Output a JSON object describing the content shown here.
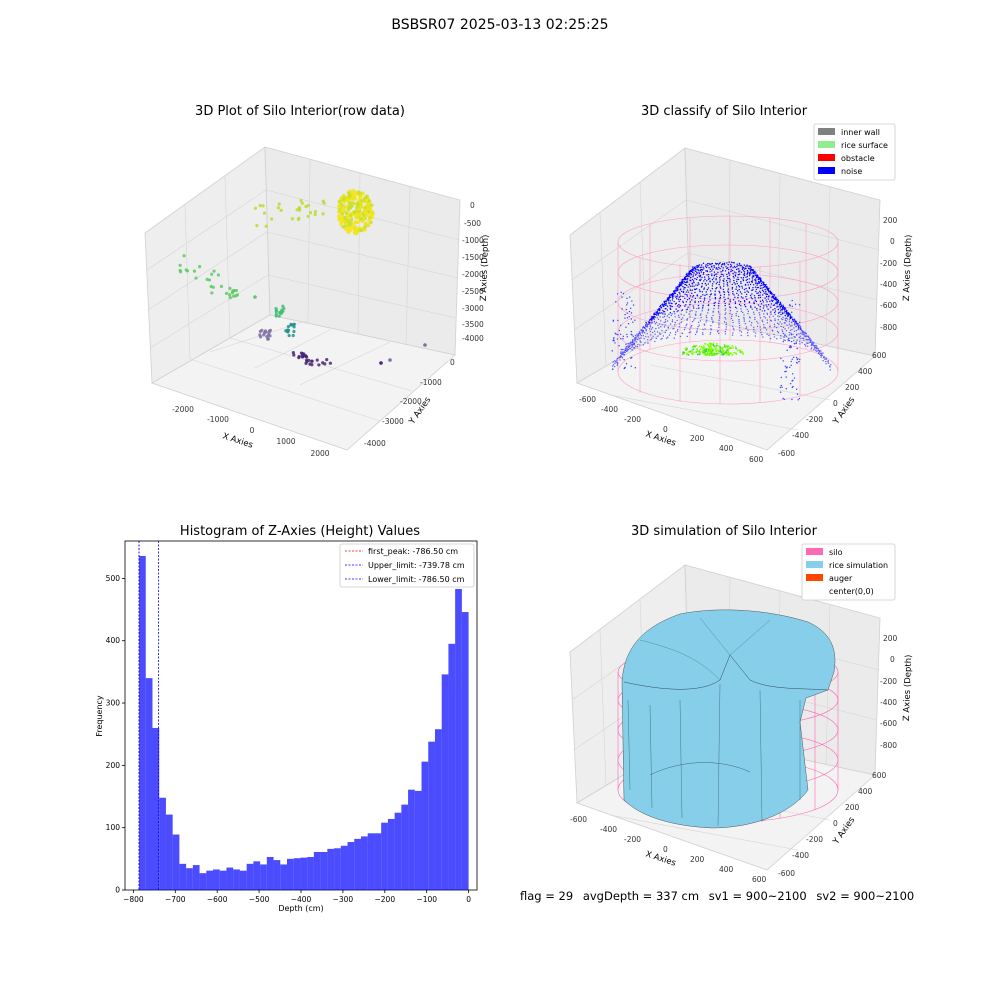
{
  "suptitle": "BSBSR07 2025-03-13 02:25:25",
  "panels": {
    "raw": {
      "title": "3D Plot of Silo Interior(row data)",
      "xlabel": "X Axies",
      "ylabel": "Y Axies",
      "zlabel": "Z Axies (Depth)",
      "x_ticks": [
        "-2000",
        "-1000",
        "0",
        "1000",
        "2000"
      ],
      "y_ticks": [
        "0",
        "-1000",
        "-2000",
        "-3000",
        "-4000"
      ],
      "z_ticks": [
        "0",
        "-500",
        "-1000",
        "-1500",
        "-2000",
        "-2500",
        "-3000",
        "-3500",
        "-4000"
      ]
    },
    "classify": {
      "title": "3D classify of Silo Interior",
      "xlabel": "X Axies",
      "ylabel": "Y Axies",
      "zlabel": "Z Axies (Depth)",
      "x_ticks": [
        "-600",
        "-400",
        "-200",
        "0",
        "200",
        "400",
        "600"
      ],
      "y_ticks": [
        "600",
        "400",
        "200",
        "0",
        "-200",
        "-400",
        "-600"
      ],
      "z_ticks": [
        "200",
        "0",
        "-200",
        "-400",
        "-600",
        "-800"
      ],
      "legend": [
        {
          "label": "inner wall",
          "color": "#808080"
        },
        {
          "label": "rice surface",
          "color": "#90ee90"
        },
        {
          "label": "obstacle",
          "color": "#ff0000"
        },
        {
          "label": "noise",
          "color": "#0000ff"
        }
      ]
    },
    "simulation": {
      "title": "3D simulation of Silo Interior",
      "xlabel": "X Axies",
      "ylabel": "Y Axies",
      "zlabel": "Z Axies (Depth)",
      "x_ticks": [
        "-600",
        "-400",
        "-200",
        "0",
        "200",
        "400",
        "600"
      ],
      "y_ticks": [
        "600",
        "400",
        "200",
        "0",
        "-200",
        "-400",
        "-600"
      ],
      "z_ticks": [
        "200",
        "0",
        "-200",
        "-400",
        "-600",
        "-800"
      ],
      "legend": [
        {
          "label": "silo",
          "color": "#ff69b4"
        },
        {
          "label": "rice simulation",
          "color": "#87ceeb"
        },
        {
          "label": "auger",
          "color": "#ff4500"
        },
        {
          "label": "center(0,0)",
          "color": ""
        }
      ]
    }
  },
  "chart_data": {
    "type": "bar",
    "title": "Histogram of Z-Axies (Height) Values",
    "xlabel": "Depth (cm)",
    "ylabel": "Frequency",
    "xlim": [
      -820,
      20
    ],
    "ylim": [
      0,
      560
    ],
    "x_ticks": [
      -800,
      -700,
      -600,
      -500,
      -400,
      -300,
      -200,
      -100,
      0
    ],
    "y_ticks": [
      0,
      100,
      200,
      300,
      400,
      500
    ],
    "bar_color": "#0000ff",
    "bin_start": -786.5,
    "bin_width": 16.05,
    "values": [
      536,
      340,
      260,
      148,
      121,
      89,
      42,
      35,
      40,
      27,
      31,
      33,
      31,
      36,
      33,
      31,
      42,
      46,
      41,
      53,
      48,
      41,
      50,
      51,
      52,
      53,
      61,
      61,
      66,
      67,
      71,
      77,
      82,
      86,
      91,
      91,
      108,
      114,
      124,
      137,
      161,
      159,
      206,
      238,
      258,
      346,
      395,
      483,
      446
    ],
    "vlines": [
      {
        "label": "first_peak: -786.50 cm",
        "x": -786.5,
        "color": "#ff0000"
      },
      {
        "label": "Upper_limit: -739.78 cm",
        "x": -739.78,
        "color": "#0000ff"
      },
      {
        "label": "Lower_limit: -786.50 cm",
        "x": -786.5,
        "color": "#0000ff"
      }
    ],
    "legend_position": "top-right"
  },
  "info": {
    "flag": "flag = 29",
    "avg_depth": "avgDepth = 337 cm",
    "sv1": "sv1 = 900~2100",
    "sv2": "sv2 = 900~2100"
  }
}
